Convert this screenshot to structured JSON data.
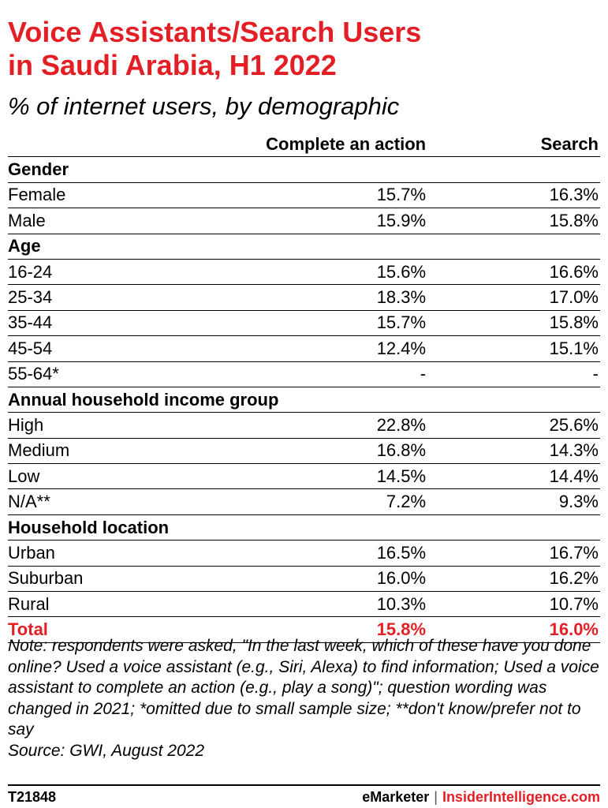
{
  "chart_data": {
    "type": "table",
    "title_line1": "Voice Assistants/Search Users",
    "title_line2": "in Saudi Arabia, H1 2022",
    "subtitle": "% of internet users, by demographic",
    "columns": [
      "Complete an action",
      "Search"
    ],
    "sections": [
      {
        "name": "Gender",
        "rows": [
          {
            "label": "Female",
            "values": [
              "15.7%",
              "16.3%"
            ]
          },
          {
            "label": "Male",
            "values": [
              "15.9%",
              "15.8%"
            ]
          }
        ]
      },
      {
        "name": "Age",
        "rows": [
          {
            "label": "16-24",
            "values": [
              "15.6%",
              "16.6%"
            ]
          },
          {
            "label": "25-34",
            "values": [
              "18.3%",
              "17.0%"
            ]
          },
          {
            "label": "35-44",
            "values": [
              "15.7%",
              "15.8%"
            ]
          },
          {
            "label": "45-54",
            "values": [
              "12.4%",
              "15.1%"
            ]
          },
          {
            "label": "55-64*",
            "values": [
              "-",
              "-"
            ]
          }
        ]
      },
      {
        "name": "Annual household income group",
        "rows": [
          {
            "label": "High",
            "values": [
              "22.8%",
              "25.6%"
            ]
          },
          {
            "label": "Medium",
            "values": [
              "16.8%",
              "14.3%"
            ]
          },
          {
            "label": "Low",
            "values": [
              "14.5%",
              "14.4%"
            ]
          },
          {
            "label": "N/A**",
            "values": [
              "7.2%",
              "9.3%"
            ]
          }
        ]
      },
      {
        "name": "Household location",
        "rows": [
          {
            "label": "Urban",
            "values": [
              "16.5%",
              "16.7%"
            ]
          },
          {
            "label": "Suburban",
            "values": [
              "16.0%",
              "16.2%"
            ]
          },
          {
            "label": "Rural",
            "values": [
              "10.3%",
              "10.7%"
            ]
          }
        ]
      }
    ],
    "total": {
      "label": "Total",
      "values": [
        "15.8%",
        "16.0%"
      ]
    }
  },
  "note": "Note: respondents were asked, \"In the last week, which of these have you done online? Used a voice assistant (e.g., Siri, Alexa) to find information; Used a voice assistant to complete an action (e.g., play a song)\"; question wording was changed in 2021; *omitted due to small sample size; **don't know/prefer not to say",
  "source": "Source: GWI, August 2022",
  "footer": {
    "chart_id": "T21848",
    "brand1": "eMarketer",
    "separator": "|",
    "brand2": "InsiderIntelligence.com"
  },
  "colors": {
    "accent": "#e31e24",
    "text": "#000000"
  }
}
